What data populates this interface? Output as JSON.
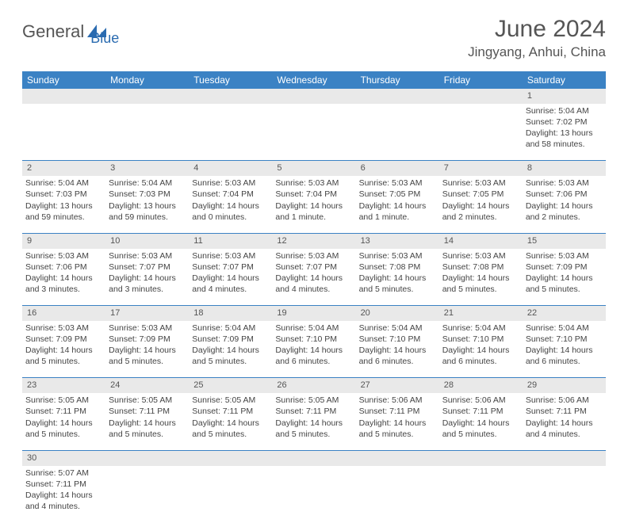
{
  "logo": {
    "part1": "General",
    "part2": "Blue"
  },
  "title": "June 2024",
  "location": "Jingyang, Anhui, China",
  "colors": {
    "header_bg": "#3b82c4",
    "header_text": "#ffffff",
    "daynum_bg": "#e9e9e9",
    "row_border": "#3b82c4",
    "logo_gray": "#555555",
    "logo_blue": "#2a6bb0"
  },
  "weekdays": [
    "Sunday",
    "Monday",
    "Tuesday",
    "Wednesday",
    "Thursday",
    "Friday",
    "Saturday"
  ],
  "weeks": [
    {
      "nums": [
        "",
        "",
        "",
        "",
        "",
        "",
        "1"
      ],
      "cells": [
        null,
        null,
        null,
        null,
        null,
        null,
        {
          "sunrise": "Sunrise: 5:04 AM",
          "sunset": "Sunset: 7:02 PM",
          "day1": "Daylight: 13 hours",
          "day2": "and 58 minutes."
        }
      ]
    },
    {
      "nums": [
        "2",
        "3",
        "4",
        "5",
        "6",
        "7",
        "8"
      ],
      "cells": [
        {
          "sunrise": "Sunrise: 5:04 AM",
          "sunset": "Sunset: 7:03 PM",
          "day1": "Daylight: 13 hours",
          "day2": "and 59 minutes."
        },
        {
          "sunrise": "Sunrise: 5:04 AM",
          "sunset": "Sunset: 7:03 PM",
          "day1": "Daylight: 13 hours",
          "day2": "and 59 minutes."
        },
        {
          "sunrise": "Sunrise: 5:03 AM",
          "sunset": "Sunset: 7:04 PM",
          "day1": "Daylight: 14 hours",
          "day2": "and 0 minutes."
        },
        {
          "sunrise": "Sunrise: 5:03 AM",
          "sunset": "Sunset: 7:04 PM",
          "day1": "Daylight: 14 hours",
          "day2": "and 1 minute."
        },
        {
          "sunrise": "Sunrise: 5:03 AM",
          "sunset": "Sunset: 7:05 PM",
          "day1": "Daylight: 14 hours",
          "day2": "and 1 minute."
        },
        {
          "sunrise": "Sunrise: 5:03 AM",
          "sunset": "Sunset: 7:05 PM",
          "day1": "Daylight: 14 hours",
          "day2": "and 2 minutes."
        },
        {
          "sunrise": "Sunrise: 5:03 AM",
          "sunset": "Sunset: 7:06 PM",
          "day1": "Daylight: 14 hours",
          "day2": "and 2 minutes."
        }
      ]
    },
    {
      "nums": [
        "9",
        "10",
        "11",
        "12",
        "13",
        "14",
        "15"
      ],
      "cells": [
        {
          "sunrise": "Sunrise: 5:03 AM",
          "sunset": "Sunset: 7:06 PM",
          "day1": "Daylight: 14 hours",
          "day2": "and 3 minutes."
        },
        {
          "sunrise": "Sunrise: 5:03 AM",
          "sunset": "Sunset: 7:07 PM",
          "day1": "Daylight: 14 hours",
          "day2": "and 3 minutes."
        },
        {
          "sunrise": "Sunrise: 5:03 AM",
          "sunset": "Sunset: 7:07 PM",
          "day1": "Daylight: 14 hours",
          "day2": "and 4 minutes."
        },
        {
          "sunrise": "Sunrise: 5:03 AM",
          "sunset": "Sunset: 7:07 PM",
          "day1": "Daylight: 14 hours",
          "day2": "and 4 minutes."
        },
        {
          "sunrise": "Sunrise: 5:03 AM",
          "sunset": "Sunset: 7:08 PM",
          "day1": "Daylight: 14 hours",
          "day2": "and 5 minutes."
        },
        {
          "sunrise": "Sunrise: 5:03 AM",
          "sunset": "Sunset: 7:08 PM",
          "day1": "Daylight: 14 hours",
          "day2": "and 5 minutes."
        },
        {
          "sunrise": "Sunrise: 5:03 AM",
          "sunset": "Sunset: 7:09 PM",
          "day1": "Daylight: 14 hours",
          "day2": "and 5 minutes."
        }
      ]
    },
    {
      "nums": [
        "16",
        "17",
        "18",
        "19",
        "20",
        "21",
        "22"
      ],
      "cells": [
        {
          "sunrise": "Sunrise: 5:03 AM",
          "sunset": "Sunset: 7:09 PM",
          "day1": "Daylight: 14 hours",
          "day2": "and 5 minutes."
        },
        {
          "sunrise": "Sunrise: 5:03 AM",
          "sunset": "Sunset: 7:09 PM",
          "day1": "Daylight: 14 hours",
          "day2": "and 5 minutes."
        },
        {
          "sunrise": "Sunrise: 5:04 AM",
          "sunset": "Sunset: 7:09 PM",
          "day1": "Daylight: 14 hours",
          "day2": "and 5 minutes."
        },
        {
          "sunrise": "Sunrise: 5:04 AM",
          "sunset": "Sunset: 7:10 PM",
          "day1": "Daylight: 14 hours",
          "day2": "and 6 minutes."
        },
        {
          "sunrise": "Sunrise: 5:04 AM",
          "sunset": "Sunset: 7:10 PM",
          "day1": "Daylight: 14 hours",
          "day2": "and 6 minutes."
        },
        {
          "sunrise": "Sunrise: 5:04 AM",
          "sunset": "Sunset: 7:10 PM",
          "day1": "Daylight: 14 hours",
          "day2": "and 6 minutes."
        },
        {
          "sunrise": "Sunrise: 5:04 AM",
          "sunset": "Sunset: 7:10 PM",
          "day1": "Daylight: 14 hours",
          "day2": "and 6 minutes."
        }
      ]
    },
    {
      "nums": [
        "23",
        "24",
        "25",
        "26",
        "27",
        "28",
        "29"
      ],
      "cells": [
        {
          "sunrise": "Sunrise: 5:05 AM",
          "sunset": "Sunset: 7:11 PM",
          "day1": "Daylight: 14 hours",
          "day2": "and 5 minutes."
        },
        {
          "sunrise": "Sunrise: 5:05 AM",
          "sunset": "Sunset: 7:11 PM",
          "day1": "Daylight: 14 hours",
          "day2": "and 5 minutes."
        },
        {
          "sunrise": "Sunrise: 5:05 AM",
          "sunset": "Sunset: 7:11 PM",
          "day1": "Daylight: 14 hours",
          "day2": "and 5 minutes."
        },
        {
          "sunrise": "Sunrise: 5:05 AM",
          "sunset": "Sunset: 7:11 PM",
          "day1": "Daylight: 14 hours",
          "day2": "and 5 minutes."
        },
        {
          "sunrise": "Sunrise: 5:06 AM",
          "sunset": "Sunset: 7:11 PM",
          "day1": "Daylight: 14 hours",
          "day2": "and 5 minutes."
        },
        {
          "sunrise": "Sunrise: 5:06 AM",
          "sunset": "Sunset: 7:11 PM",
          "day1": "Daylight: 14 hours",
          "day2": "and 5 minutes."
        },
        {
          "sunrise": "Sunrise: 5:06 AM",
          "sunset": "Sunset: 7:11 PM",
          "day1": "Daylight: 14 hours",
          "day2": "and 4 minutes."
        }
      ]
    },
    {
      "nums": [
        "30",
        "",
        "",
        "",
        "",
        "",
        ""
      ],
      "cells": [
        {
          "sunrise": "Sunrise: 5:07 AM",
          "sunset": "Sunset: 7:11 PM",
          "day1": "Daylight: 14 hours",
          "day2": "and 4 minutes."
        },
        null,
        null,
        null,
        null,
        null,
        null
      ]
    }
  ]
}
